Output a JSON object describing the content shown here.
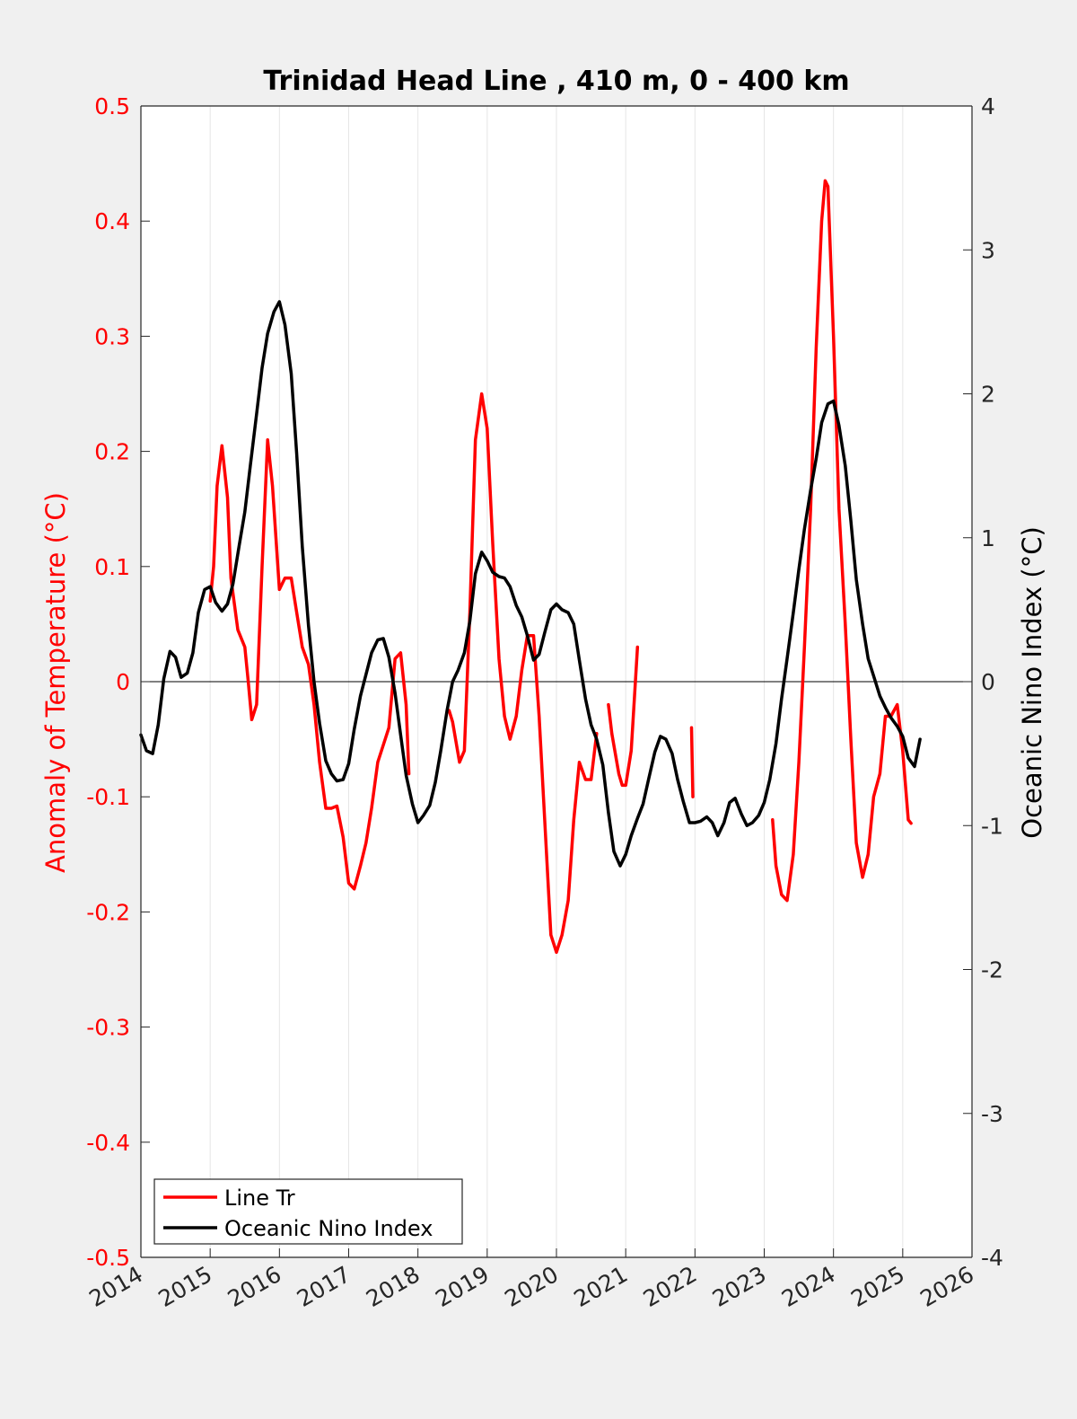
{
  "chart_data": {
    "type": "line",
    "title": "Trinidad Head Line , 410 m, 0 - 400 km",
    "xlim": [
      2014,
      2026
    ],
    "x_ticks": [
      2014,
      2015,
      2016,
      2017,
      2018,
      2019,
      2020,
      2021,
      2022,
      2023,
      2024,
      2025,
      2026
    ],
    "x_tick_labels": [
      "2014",
      "2015",
      "2016",
      "2017",
      "2018",
      "2019",
      "2020",
      "2021",
      "2022",
      "2023",
      "2024",
      "2025",
      "2026"
    ],
    "y_left": {
      "label": "Anomaly of Temperature (°C)",
      "lim": [
        -0.5,
        0.5
      ],
      "ticks": [
        -0.5,
        -0.4,
        -0.3,
        -0.2,
        -0.1,
        0,
        0.1,
        0.2,
        0.3,
        0.4,
        0.5
      ],
      "tick_labels": [
        "-0.5",
        "-0.4",
        "-0.3",
        "-0.2",
        "-0.1",
        "0",
        "0.1",
        "0.2",
        "0.3",
        "0.4",
        "0.5"
      ],
      "color": "#ff0000"
    },
    "y_right": {
      "label": "Oceanic Nino Index (°C)",
      "lim": [
        -4,
        4
      ],
      "ticks": [
        -4,
        -3,
        -2,
        -1,
        0,
        1,
        2,
        3,
        4
      ],
      "tick_labels": [
        "-4",
        "-3",
        "-2",
        "-1",
        "0",
        "1",
        "2",
        "3",
        "4"
      ],
      "color": "#000000"
    },
    "grid": "vertical",
    "legend_position": "bottom-left",
    "series": [
      {
        "name": "Line Tr",
        "axis": "left",
        "color": "#ff0000",
        "segments": [
          [
            [
              2015.0,
              0.07
            ],
            [
              2015.05,
              0.1
            ],
            [
              2015.1,
              0.17
            ],
            [
              2015.17,
              0.205
            ],
            [
              2015.25,
              0.16
            ],
            [
              2015.3,
              0.09
            ],
            [
              2015.4,
              0.045
            ],
            [
              2015.5,
              0.03
            ],
            [
              2015.55,
              0.0
            ],
            [
              2015.6,
              -0.033
            ],
            [
              2015.67,
              -0.02
            ],
            [
              2015.75,
              0.1
            ],
            [
              2015.83,
              0.21
            ],
            [
              2015.9,
              0.17
            ],
            [
              2016.0,
              0.08
            ],
            [
              2016.08,
              0.09
            ],
            [
              2016.17,
              0.09
            ],
            [
              2016.25,
              0.06
            ],
            [
              2016.33,
              0.03
            ],
            [
              2016.42,
              0.015
            ],
            [
              2016.5,
              -0.02
            ],
            [
              2016.58,
              -0.07
            ],
            [
              2016.67,
              -0.11
            ],
            [
              2016.75,
              -0.11
            ],
            [
              2016.83,
              -0.108
            ],
            [
              2016.92,
              -0.135
            ],
            [
              2017.0,
              -0.175
            ],
            [
              2017.08,
              -0.18
            ],
            [
              2017.17,
              -0.16
            ],
            [
              2017.25,
              -0.14
            ],
            [
              2017.33,
              -0.11
            ],
            [
              2017.42,
              -0.07
            ],
            [
              2017.5,
              -0.055
            ],
            [
              2017.58,
              -0.04
            ],
            [
              2017.67,
              0.02
            ],
            [
              2017.75,
              0.025
            ],
            [
              2017.83,
              -0.02
            ],
            [
              2017.87,
              -0.08
            ]
          ],
          [
            [
              2018.45,
              -0.025
            ],
            [
              2018.5,
              -0.035
            ],
            [
              2018.6,
              -0.07
            ],
            [
              2018.67,
              -0.06
            ],
            [
              2018.75,
              0.06
            ],
            [
              2018.83,
              0.21
            ],
            [
              2018.92,
              0.25
            ],
            [
              2019.0,
              0.22
            ],
            [
              2019.08,
              0.12
            ],
            [
              2019.17,
              0.02
            ],
            [
              2019.25,
              -0.03
            ],
            [
              2019.33,
              -0.05
            ],
            [
              2019.42,
              -0.03
            ],
            [
              2019.5,
              0.01
            ],
            [
              2019.58,
              0.04
            ],
            [
              2019.67,
              0.04
            ],
            [
              2019.75,
              -0.03
            ],
            [
              2019.83,
              -0.12
            ],
            [
              2019.92,
              -0.22
            ],
            [
              2020.0,
              -0.235
            ],
            [
              2020.08,
              -0.22
            ],
            [
              2020.17,
              -0.19
            ],
            [
              2020.25,
              -0.12
            ],
            [
              2020.33,
              -0.07
            ],
            [
              2020.42,
              -0.085
            ],
            [
              2020.5,
              -0.085
            ],
            [
              2020.58,
              -0.045
            ]
          ],
          [
            [
              2020.75,
              -0.02
            ],
            [
              2020.8,
              -0.045
            ],
            [
              2020.9,
              -0.08
            ],
            [
              2020.95,
              -0.09
            ],
            [
              2021.0,
              -0.09
            ],
            [
              2021.08,
              -0.06
            ],
            [
              2021.17,
              0.03
            ]
          ],
          [
            [
              2021.95,
              -0.04
            ],
            [
              2021.97,
              -0.1
            ]
          ],
          [
            [
              2023.12,
              -0.12
            ],
            [
              2023.17,
              -0.16
            ],
            [
              2023.25,
              -0.185
            ],
            [
              2023.33,
              -0.19
            ],
            [
              2023.42,
              -0.15
            ],
            [
              2023.5,
              -0.07
            ],
            [
              2023.58,
              0.03
            ],
            [
              2023.67,
              0.15
            ],
            [
              2023.75,
              0.29
            ],
            [
              2023.83,
              0.4
            ],
            [
              2023.88,
              0.435
            ],
            [
              2023.92,
              0.43
            ],
            [
              2024.0,
              0.3
            ],
            [
              2024.08,
              0.15
            ],
            [
              2024.17,
              0.05
            ],
            [
              2024.25,
              -0.05
            ],
            [
              2024.33,
              -0.14
            ],
            [
              2024.42,
              -0.17
            ],
            [
              2024.5,
              -0.15
            ],
            [
              2024.58,
              -0.1
            ],
            [
              2024.67,
              -0.08
            ],
            [
              2024.75,
              -0.03
            ],
            [
              2024.83,
              -0.03
            ],
            [
              2024.92,
              -0.02
            ],
            [
              2025.0,
              -0.06
            ],
            [
              2025.08,
              -0.12
            ],
            [
              2025.12,
              -0.123
            ]
          ]
        ]
      },
      {
        "name": "Oceanic Nino Index",
        "axis": "right",
        "color": "#000000",
        "segments": [
          [
            [
              2014.0,
              -0.37
            ],
            [
              2014.08,
              -0.48
            ],
            [
              2014.17,
              -0.5
            ],
            [
              2014.25,
              -0.3
            ],
            [
              2014.33,
              0.02
            ],
            [
              2014.42,
              0.21
            ],
            [
              2014.5,
              0.17
            ],
            [
              2014.58,
              0.03
            ],
            [
              2014.67,
              0.06
            ],
            [
              2014.75,
              0.2
            ],
            [
              2014.83,
              0.48
            ],
            [
              2014.92,
              0.64
            ],
            [
              2015.0,
              0.66
            ],
            [
              2015.08,
              0.55
            ],
            [
              2015.17,
              0.49
            ],
            [
              2015.25,
              0.54
            ],
            [
              2015.33,
              0.68
            ],
            [
              2015.42,
              0.95
            ],
            [
              2015.5,
              1.18
            ],
            [
              2015.58,
              1.5
            ],
            [
              2015.67,
              1.86
            ],
            [
              2015.75,
              2.18
            ],
            [
              2015.83,
              2.42
            ],
            [
              2015.92,
              2.57
            ],
            [
              2016.0,
              2.64
            ],
            [
              2016.08,
              2.48
            ],
            [
              2016.17,
              2.14
            ],
            [
              2016.25,
              1.58
            ],
            [
              2016.33,
              0.94
            ],
            [
              2016.42,
              0.39
            ],
            [
              2016.5,
              0.0
            ],
            [
              2016.58,
              -0.29
            ],
            [
              2016.67,
              -0.55
            ],
            [
              2016.75,
              -0.64
            ],
            [
              2016.83,
              -0.69
            ],
            [
              2016.92,
              -0.68
            ],
            [
              2017.0,
              -0.57
            ],
            [
              2017.08,
              -0.33
            ],
            [
              2017.17,
              -0.1
            ],
            [
              2017.25,
              0.05
            ],
            [
              2017.33,
              0.2
            ],
            [
              2017.42,
              0.29
            ],
            [
              2017.5,
              0.3
            ],
            [
              2017.58,
              0.17
            ],
            [
              2017.67,
              -0.08
            ],
            [
              2017.75,
              -0.37
            ],
            [
              2017.83,
              -0.65
            ],
            [
              2017.92,
              -0.85
            ],
            [
              2018.0,
              -0.98
            ],
            [
              2018.08,
              -0.93
            ],
            [
              2018.17,
              -0.86
            ],
            [
              2018.25,
              -0.7
            ],
            [
              2018.33,
              -0.48
            ],
            [
              2018.42,
              -0.2
            ],
            [
              2018.5,
              0.0
            ],
            [
              2018.58,
              0.08
            ],
            [
              2018.67,
              0.2
            ],
            [
              2018.75,
              0.42
            ],
            [
              2018.83,
              0.75
            ],
            [
              2018.92,
              0.9
            ],
            [
              2019.0,
              0.84
            ],
            [
              2019.08,
              0.76
            ],
            [
              2019.17,
              0.73
            ],
            [
              2019.25,
              0.72
            ],
            [
              2019.33,
              0.66
            ],
            [
              2019.42,
              0.53
            ],
            [
              2019.5,
              0.45
            ],
            [
              2019.58,
              0.32
            ],
            [
              2019.67,
              0.15
            ],
            [
              2019.75,
              0.19
            ],
            [
              2019.83,
              0.34
            ],
            [
              2019.92,
              0.5
            ],
            [
              2020.0,
              0.54
            ],
            [
              2020.08,
              0.5
            ],
            [
              2020.17,
              0.48
            ],
            [
              2020.25,
              0.4
            ],
            [
              2020.33,
              0.15
            ],
            [
              2020.42,
              -0.12
            ],
            [
              2020.5,
              -0.3
            ],
            [
              2020.58,
              -0.4
            ],
            [
              2020.67,
              -0.58
            ],
            [
              2020.75,
              -0.91
            ],
            [
              2020.83,
              -1.18
            ],
            [
              2020.92,
              -1.28
            ],
            [
              2021.0,
              -1.2
            ],
            [
              2021.08,
              -1.07
            ],
            [
              2021.17,
              -0.95
            ],
            [
              2021.25,
              -0.85
            ],
            [
              2021.33,
              -0.68
            ],
            [
              2021.42,
              -0.49
            ],
            [
              2021.5,
              -0.38
            ],
            [
              2021.58,
              -0.4
            ],
            [
              2021.67,
              -0.5
            ],
            [
              2021.75,
              -0.68
            ],
            [
              2021.83,
              -0.83
            ],
            [
              2021.92,
              -0.98
            ],
            [
              2022.0,
              -0.98
            ],
            [
              2022.08,
              -0.97
            ],
            [
              2022.17,
              -0.94
            ],
            [
              2022.25,
              -0.98
            ],
            [
              2022.33,
              -1.07
            ],
            [
              2022.42,
              -0.98
            ],
            [
              2022.5,
              -0.84
            ],
            [
              2022.58,
              -0.81
            ],
            [
              2022.67,
              -0.92
            ],
            [
              2022.75,
              -1.0
            ],
            [
              2022.83,
              -0.98
            ],
            [
              2022.92,
              -0.93
            ],
            [
              2023.0,
              -0.84
            ],
            [
              2023.08,
              -0.68
            ],
            [
              2023.17,
              -0.43
            ],
            [
              2023.25,
              -0.12
            ],
            [
              2023.33,
              0.16
            ],
            [
              2023.42,
              0.48
            ],
            [
              2023.5,
              0.78
            ],
            [
              2023.58,
              1.06
            ],
            [
              2023.67,
              1.33
            ],
            [
              2023.75,
              1.55
            ],
            [
              2023.83,
              1.8
            ],
            [
              2023.92,
              1.93
            ],
            [
              2024.0,
              1.95
            ],
            [
              2024.08,
              1.78
            ],
            [
              2024.17,
              1.5
            ],
            [
              2024.25,
              1.12
            ],
            [
              2024.33,
              0.71
            ],
            [
              2024.42,
              0.4
            ],
            [
              2024.5,
              0.16
            ],
            [
              2024.58,
              0.04
            ],
            [
              2024.67,
              -0.1
            ],
            [
              2024.75,
              -0.18
            ],
            [
              2024.83,
              -0.25
            ],
            [
              2024.92,
              -0.31
            ],
            [
              2025.0,
              -0.38
            ],
            [
              2025.08,
              -0.53
            ],
            [
              2025.17,
              -0.59
            ],
            [
              2025.25,
              -0.4
            ]
          ]
        ]
      }
    ]
  }
}
